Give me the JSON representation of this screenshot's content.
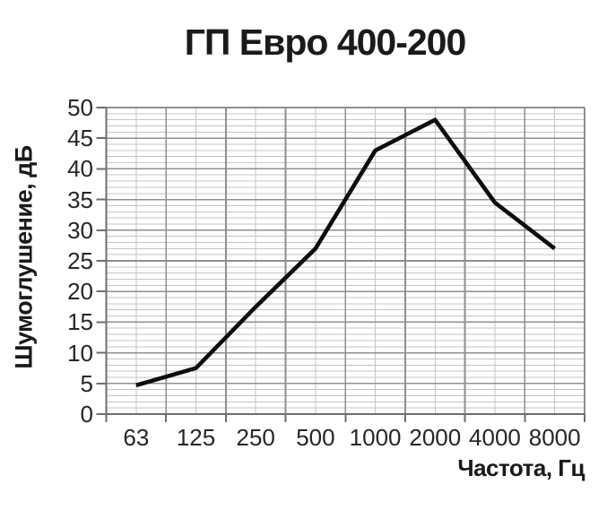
{
  "chart_data": {
    "type": "line",
    "title": "ГП Евро 400-200",
    "xlabel": "Частота, Гц",
    "ylabel": "Шумоглушение, дБ",
    "categories": [
      "63",
      "125",
      "250",
      "500",
      "1000",
      "2000",
      "4000",
      "8000"
    ],
    "series": [
      {
        "name": "Шумоглушение",
        "values": [
          4.7,
          7.5,
          17.5,
          27,
          43,
          48,
          34.5,
          27
        ]
      }
    ],
    "ylim": [
      0,
      50
    ],
    "y_major_step": 5,
    "y_minor_step": 1,
    "x_minor_gridlines_at_category_centers": true,
    "grid": "major+minor",
    "legend": "none",
    "colors": {
      "line": "#0d0d0d",
      "major_grid": "#8f8f8f",
      "minor_grid": "#c4c4c4",
      "axis": "#6e6e6e",
      "text": "#262626",
      "background": "#ffffff"
    }
  }
}
